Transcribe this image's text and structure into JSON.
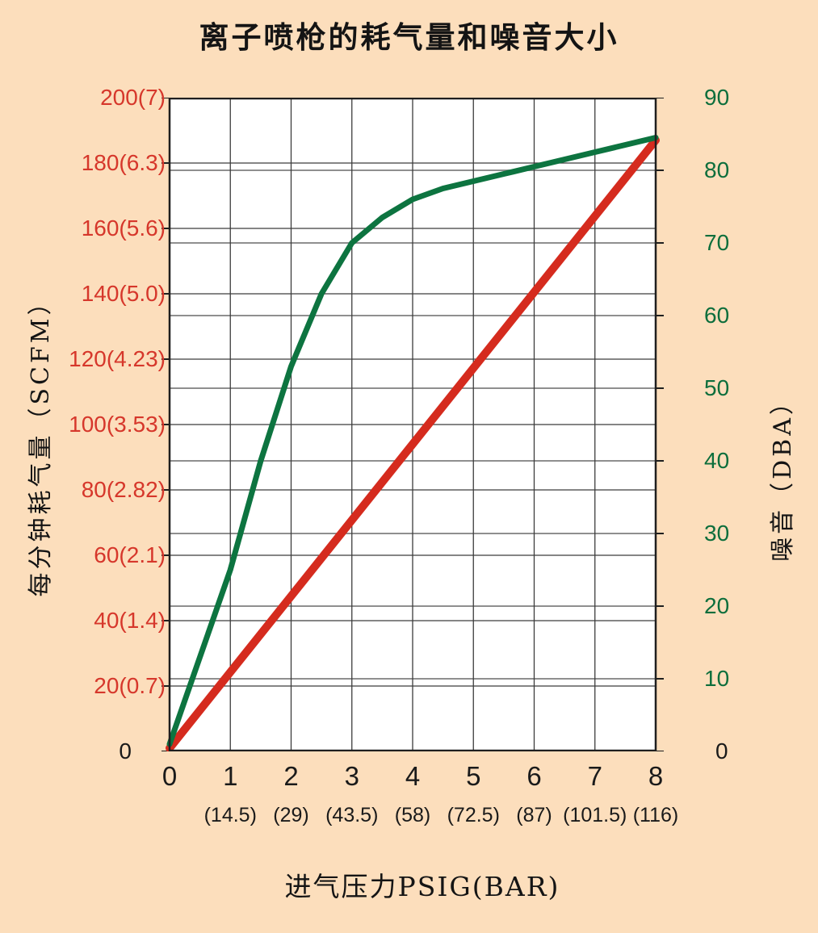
{
  "chart_data": {
    "type": "line",
    "title": "离子喷枪的耗气量和噪音大小",
    "x_axis": {
      "label": "进气压力PSIG(BAR)",
      "range": [
        0,
        8
      ],
      "ticks": [
        "0",
        "1",
        "2",
        "3",
        "4",
        "5",
        "6",
        "7",
        "8"
      ],
      "sub_ticks": [
        "",
        "(14.5)",
        "(29)",
        "(43.5)",
        "(58)",
        "(72.5)",
        "(87)",
        "(101.5)",
        "(116)"
      ]
    },
    "left_axis": {
      "label": "每分钟耗气量（SCFM）",
      "range": [
        0,
        200
      ],
      "tick_step": 20,
      "ticks": [
        "0",
        "20(0.7)",
        "40(1.4)",
        "60(2.1)",
        "80(2.82)",
        "100(3.53)",
        "120(4.23)",
        "140(5.0)",
        "160(5.6)",
        "180(6.3)",
        "200(7)"
      ],
      "tick_color": "#d6372b",
      "zero_tick_color": "#1a1a1a"
    },
    "right_axis": {
      "label": "噪音（DBA）",
      "range": [
        0,
        90
      ],
      "tick_step": 10,
      "ticks": [
        "0",
        "10",
        "20",
        "30",
        "40",
        "50",
        "60",
        "70",
        "80",
        "90"
      ],
      "tick_color": "#0d6e3c",
      "zero_tick_color": "#1a1a1a"
    },
    "series": [
      {
        "name": "air-consumption-line",
        "axis": "left",
        "color": "#d52b1e",
        "stroke_width": 10,
        "x": [
          0,
          8
        ],
        "y": [
          1,
          187
        ]
      },
      {
        "name": "noise-curve",
        "axis": "right",
        "color": "#0d7440",
        "stroke_width": 7,
        "x": [
          0,
          0.5,
          1,
          1.5,
          2,
          2.5,
          3,
          3.5,
          4,
          4.5,
          5,
          5.5,
          6,
          6.5,
          7,
          7.5,
          8
        ],
        "y": [
          1,
          13,
          25,
          40,
          53,
          63,
          70,
          73.5,
          76,
          77.5,
          78.5,
          79.5,
          80.5,
          81.5,
          82.5,
          83.5,
          84.5
        ]
      }
    ],
    "grid": true,
    "legend": false,
    "colors": {
      "page_background": "#fcdebc",
      "plot_background": "#ffffff",
      "plot_border": "#1f1f1f",
      "grid_left": "#3c3c3c",
      "grid_right": "#8f8f8f"
    }
  }
}
